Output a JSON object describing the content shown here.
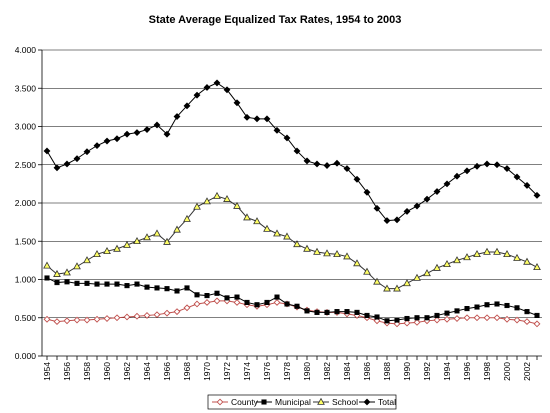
{
  "chart_data": {
    "type": "line",
    "title": "State Average Equalized Tax Rates, 1954 to 2003",
    "xlabel": "",
    "ylabel": "",
    "ylim": [
      0,
      4
    ],
    "yticks": [
      "0.000",
      "0.500",
      "1.000",
      "1.500",
      "2.000",
      "2.500",
      "3.000",
      "3.500",
      "4.000"
    ],
    "xticks": [
      "1954",
      "1956",
      "1958",
      "1960",
      "1962",
      "1964",
      "1966",
      "1968",
      "1970",
      "1972",
      "1974",
      "1976",
      "1978",
      "1980",
      "1982",
      "1984",
      "1986",
      "1988",
      "1990",
      "1992",
      "1994",
      "1996",
      "1998",
      "2000",
      "2002"
    ],
    "grid": "horizontal",
    "legend_position": "bottom",
    "x": [
      1954,
      1955,
      1956,
      1957,
      1958,
      1959,
      1960,
      1961,
      1962,
      1963,
      1964,
      1965,
      1966,
      1967,
      1968,
      1969,
      1970,
      1971,
      1972,
      1973,
      1974,
      1975,
      1976,
      1977,
      1978,
      1979,
      1980,
      1981,
      1982,
      1983,
      1984,
      1985,
      1986,
      1987,
      1988,
      1989,
      1990,
      1991,
      1992,
      1993,
      1994,
      1995,
      1996,
      1997,
      1998,
      1999,
      2000,
      2001,
      2002,
      2003
    ],
    "series": [
      {
        "name": "County",
        "marker": "diamond-open",
        "color": "#c0504d",
        "values": [
          0.48,
          0.45,
          0.46,
          0.47,
          0.47,
          0.48,
          0.49,
          0.5,
          0.51,
          0.52,
          0.53,
          0.54,
          0.56,
          0.58,
          0.63,
          0.68,
          0.7,
          0.72,
          0.72,
          0.7,
          0.67,
          0.65,
          0.67,
          0.7,
          0.68,
          0.64,
          0.6,
          0.58,
          0.57,
          0.57,
          0.55,
          0.53,
          0.5,
          0.46,
          0.43,
          0.42,
          0.43,
          0.44,
          0.46,
          0.47,
          0.48,
          0.49,
          0.5,
          0.5,
          0.5,
          0.5,
          0.48,
          0.47,
          0.45,
          0.42
        ]
      },
      {
        "name": "Municipal",
        "marker": "square",
        "color": "#000000",
        "values": [
          1.02,
          0.96,
          0.97,
          0.95,
          0.95,
          0.94,
          0.94,
          0.94,
          0.92,
          0.94,
          0.9,
          0.89,
          0.88,
          0.85,
          0.89,
          0.8,
          0.79,
          0.82,
          0.76,
          0.77,
          0.7,
          0.67,
          0.7,
          0.77,
          0.68,
          0.65,
          0.59,
          0.57,
          0.57,
          0.58,
          0.58,
          0.57,
          0.53,
          0.51,
          0.46,
          0.47,
          0.49,
          0.5,
          0.5,
          0.53,
          0.56,
          0.59,
          0.62,
          0.64,
          0.67,
          0.68,
          0.66,
          0.63,
          0.58,
          0.53
        ]
      },
      {
        "name": "School",
        "marker": "triangle-open",
        "color": "#9bbb59",
        "values": [
          1.18,
          1.07,
          1.09,
          1.17,
          1.25,
          1.33,
          1.37,
          1.4,
          1.45,
          1.5,
          1.55,
          1.6,
          1.49,
          1.65,
          1.79,
          1.95,
          2.02,
          2.09,
          2.05,
          1.96,
          1.81,
          1.76,
          1.66,
          1.6,
          1.56,
          1.46,
          1.4,
          1.36,
          1.34,
          1.33,
          1.3,
          1.21,
          1.1,
          0.97,
          0.88,
          0.88,
          0.95,
          1.02,
          1.08,
          1.15,
          1.2,
          1.25,
          1.29,
          1.33,
          1.36,
          1.36,
          1.33,
          1.28,
          1.23,
          1.16
        ]
      },
      {
        "name": "Total",
        "marker": "diamond",
        "color": "#000000",
        "values": [
          2.68,
          2.46,
          2.51,
          2.58,
          2.67,
          2.75,
          2.81,
          2.84,
          2.9,
          2.92,
          2.96,
          3.02,
          2.9,
          3.13,
          3.27,
          3.41,
          3.51,
          3.57,
          3.48,
          3.31,
          3.12,
          3.1,
          3.1,
          2.95,
          2.85,
          2.68,
          2.55,
          2.51,
          2.49,
          2.52,
          2.45,
          2.31,
          2.14,
          1.93,
          1.77,
          1.78,
          1.89,
          1.96,
          2.05,
          2.15,
          2.25,
          2.35,
          2.42,
          2.48,
          2.51,
          2.5,
          2.45,
          2.34,
          2.23,
          2.1
        ]
      }
    ]
  }
}
